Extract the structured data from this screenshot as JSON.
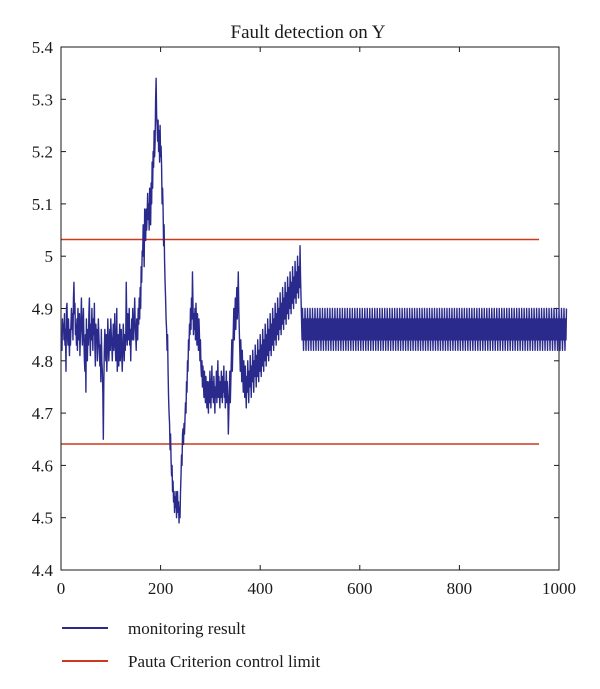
{
  "chart_data": {
    "type": "line",
    "title": "Fault detection on Y",
    "xlabel": "",
    "ylabel": "",
    "xlim": [
      0,
      1000
    ],
    "ylim": [
      4.4,
      5.4
    ],
    "x_ticks": [
      0,
      200,
      400,
      600,
      800,
      1000
    ],
    "x_tick_labels": [
      "0",
      "200",
      "400",
      "600",
      "800",
      "1000"
    ],
    "y_ticks": [
      4.4,
      4.5,
      4.6,
      4.7,
      4.8,
      4.9,
      5.0,
      5.1,
      5.2,
      5.3,
      5.4
    ],
    "y_tick_labels": [
      "4.4",
      "4.5",
      "4.6",
      "4.7",
      "4.8",
      "4.9",
      "5",
      "5.1",
      "5.2",
      "5.3",
      "5.4"
    ],
    "grid": false,
    "legend_position": "bottom",
    "series": [
      {
        "name": "monitoring result",
        "color": "#2a2a8c",
        "style": "line",
        "x_start": 1,
        "x_step": 1,
        "values": [
          4.85,
          4.82,
          4.88,
          4.86,
          4.87,
          4.84,
          4.89,
          4.83,
          4.86,
          4.78,
          4.9,
          4.91,
          4.85,
          4.83,
          4.88,
          4.84,
          4.81,
          4.86,
          4.83,
          4.87,
          4.9,
          4.86,
          4.89,
          4.84,
          4.92,
          4.95,
          4.89,
          4.91,
          4.85,
          4.87,
          4.83,
          4.88,
          4.82,
          4.9,
          4.86,
          4.84,
          4.89,
          4.81,
          4.85,
          4.88,
          4.92,
          4.86,
          4.83,
          4.87,
          4.9,
          4.84,
          4.8,
          4.78,
          4.85,
          4.74,
          4.88,
          4.82,
          4.8,
          4.86,
          4.83,
          4.89,
          4.92,
          4.85,
          4.81,
          4.87,
          4.84,
          4.9,
          4.86,
          4.82,
          4.88,
          4.85,
          4.91,
          4.83,
          4.79,
          4.87,
          4.84,
          4.86,
          4.8,
          4.83,
          4.88,
          4.85,
          4.82,
          4.79,
          4.83,
          4.76,
          4.86,
          4.8,
          4.78,
          4.74,
          4.65,
          4.76,
          4.82,
          4.86,
          4.83,
          4.8,
          4.85,
          4.78,
          4.82,
          4.88,
          4.84,
          4.8,
          4.83,
          4.86,
          4.82,
          4.88,
          4.85,
          4.83,
          4.8,
          4.84,
          4.87,
          4.82,
          4.85,
          4.89,
          4.83,
          4.8,
          4.84,
          4.9,
          4.78,
          4.82,
          4.85,
          4.79,
          4.84,
          4.87,
          4.8,
          4.83,
          4.86,
          4.81,
          4.78,
          4.82,
          4.87,
          4.84,
          4.8,
          4.85,
          4.82,
          4.84,
          4.95,
          4.88,
          4.83,
          4.89,
          4.86,
          4.84,
          4.9,
          4.83,
          4.86,
          4.8,
          4.85,
          4.88,
          4.84,
          4.9,
          4.86,
          4.84,
          4.88,
          4.92,
          4.87,
          4.85,
          4.82,
          4.88,
          4.86,
          4.84,
          4.9,
          4.87,
          4.92,
          4.88,
          4.94,
          4.9,
          4.98,
          4.95,
          5.01,
          5.0,
          5.06,
          5.04,
          4.98,
          5.09,
          5.05,
          5.03,
          5.09,
          5.05,
          5.08,
          5.12,
          5.07,
          5.1,
          5.05,
          5.13,
          5.11,
          5.06,
          5.14,
          5.1,
          5.18,
          5.13,
          5.2,
          5.17,
          5.24,
          5.19,
          5.22,
          5.3,
          5.34,
          5.27,
          5.25,
          5.22,
          5.26,
          5.2,
          5.24,
          5.18,
          5.25,
          5.19,
          5.21,
          5.17,
          5.1,
          5.13,
          5.09,
          5.02,
          5.06,
          4.99,
          4.95,
          4.92,
          4.88,
          4.86,
          4.82,
          4.85,
          4.78,
          4.73,
          4.7,
          4.68,
          4.63,
          4.66,
          4.61,
          4.58,
          4.6,
          4.55,
          4.57,
          4.53,
          4.55,
          4.51,
          4.54,
          4.52,
          4.55,
          4.5,
          4.53,
          4.55,
          4.51,
          4.53,
          4.49,
          4.52,
          4.5,
          4.55,
          4.58,
          4.62,
          4.6,
          4.66,
          4.67,
          4.64,
          4.68,
          4.66,
          4.69,
          4.72,
          4.7,
          4.76,
          4.74,
          4.8,
          4.78,
          4.84,
          4.82,
          4.87,
          4.85,
          4.9,
          4.86,
          4.92,
          4.88,
          4.97,
          4.91,
          4.85,
          4.89,
          4.86,
          4.9,
          4.84,
          4.91,
          4.87,
          4.83,
          4.89,
          4.86,
          4.82,
          4.88,
          4.85,
          4.8,
          4.84,
          4.79,
          4.77,
          4.8,
          4.75,
          4.79,
          4.76,
          4.73,
          4.78,
          4.75,
          4.72,
          4.77,
          4.74,
          4.71,
          4.76,
          4.73,
          4.7,
          4.76,
          4.72,
          4.78,
          4.74,
          4.71,
          4.75,
          4.79,
          4.73,
          4.76,
          4.72,
          4.77,
          4.74,
          4.7,
          4.75,
          4.73,
          4.78,
          4.72,
          4.76,
          4.8,
          4.73,
          4.77,
          4.74,
          4.71,
          4.76,
          4.73,
          4.78,
          4.75,
          4.72,
          4.77,
          4.74,
          4.79,
          4.73,
          4.76,
          4.71,
          4.75,
          4.78,
          4.72,
          4.76,
          4.73,
          4.66,
          4.7,
          4.74,
          4.78,
          4.72,
          4.76,
          4.8,
          4.84,
          4.78,
          4.82,
          4.86,
          4.9,
          4.84,
          4.88,
          4.92,
          4.86,
          4.9,
          4.94,
          4.88,
          4.92,
          4.97,
          4.9,
          4.86,
          4.82,
          4.78,
          4.84,
          4.8,
          4.76,
          4.82,
          4.78,
          4.74,
          4.8,
          4.77,
          4.73,
          4.79,
          4.75,
          4.71,
          4.77,
          4.74,
          4.8,
          4.76,
          4.72,
          4.78,
          4.75,
          4.81,
          4.77,
          4.73,
          4.79,
          4.76,
          4.82,
          4.78,
          4.74,
          4.8,
          4.77,
          4.83,
          4.79,
          4.75,
          4.81,
          4.77,
          4.84,
          4.8,
          4.76,
          4.82,
          4.78,
          4.85,
          4.81,
          4.77,
          4.83,
          4.79,
          4.86,
          4.82,
          4.78,
          4.84,
          4.8,
          4.87,
          4.83,
          4.79,
          4.85,
          4.81,
          4.88,
          4.84,
          4.8,
          4.86,
          4.82,
          4.89,
          4.85,
          4.81,
          4.87,
          4.83,
          4.9,
          4.86,
          4.82,
          4.88,
          4.84,
          4.91,
          4.87,
          4.83,
          4.89,
          4.85,
          4.92,
          4.88,
          4.84,
          4.9,
          4.86,
          4.93,
          4.89,
          4.85,
          4.91,
          4.87,
          4.94,
          4.9,
          4.86,
          4.92,
          4.88,
          4.95,
          4.91,
          4.87,
          4.93,
          4.89,
          4.96,
          4.92,
          4.88,
          4.94,
          4.9,
          4.97,
          4.93,
          4.89,
          4.95,
          4.91,
          4.98,
          4.94,
          4.9,
          4.96,
          4.92,
          4.99,
          4.95,
          4.91,
          4.97,
          4.93,
          5.0,
          4.96,
          4.92,
          4.98,
          4.94,
          5.02,
          4.96,
          4.92,
          4.88,
          4.84,
          4.9,
          4.86,
          4.82,
          4.88,
          4.84,
          4.9,
          4.86,
          4.82,
          4.88,
          4.84,
          4.9,
          4.86,
          4.82,
          4.88,
          4.84,
          4.9,
          4.86,
          4.82,
          4.88,
          4.84,
          4.9,
          4.86,
          4.82,
          4.88,
          4.84,
          4.9,
          4.86,
          4.82,
          4.88,
          4.84,
          4.9,
          4.86,
          4.82,
          4.88,
          4.84,
          4.9,
          4.86,
          4.82,
          4.88,
          4.84,
          4.9,
          4.86,
          4.82,
          4.88,
          4.84,
          4.9,
          4.86,
          4.82,
          4.88,
          4.84,
          4.9,
          4.86,
          4.82,
          4.88,
          4.84,
          4.9,
          4.86,
          4.82,
          4.88,
          4.84,
          4.9,
          4.86,
          4.82,
          4.88,
          4.84,
          4.9,
          4.86,
          4.82,
          4.88,
          4.84,
          4.9,
          4.86,
          4.82,
          4.88,
          4.84,
          4.9,
          4.86,
          4.82,
          4.88,
          4.84,
          4.9,
          4.86,
          4.82,
          4.88,
          4.84,
          4.9,
          4.86,
          4.82,
          4.88,
          4.84,
          4.9,
          4.86,
          4.82,
          4.88,
          4.84,
          4.9,
          4.86,
          4.82,
          4.88,
          4.84,
          4.9,
          4.86,
          4.82,
          4.88,
          4.84,
          4.9,
          4.86,
          4.82,
          4.88,
          4.84,
          4.9,
          4.86,
          4.82,
          4.88,
          4.84,
          4.9,
          4.86,
          4.82,
          4.88,
          4.84,
          4.9,
          4.86,
          4.82,
          4.88,
          4.84,
          4.9,
          4.86,
          4.82,
          4.88,
          4.84,
          4.9,
          4.86,
          4.82,
          4.88,
          4.84,
          4.9,
          4.86,
          4.82,
          4.88,
          4.84,
          4.9,
          4.86,
          4.82,
          4.88,
          4.84,
          4.9,
          4.86,
          4.82,
          4.88,
          4.84,
          4.9,
          4.86,
          4.82,
          4.88,
          4.84,
          4.9,
          4.86,
          4.82,
          4.88,
          4.84,
          4.9,
          4.86,
          4.82,
          4.88,
          4.84,
          4.9,
          4.86,
          4.82,
          4.88,
          4.84,
          4.9,
          4.86,
          4.82,
          4.88,
          4.84,
          4.9,
          4.86,
          4.82,
          4.88,
          4.84,
          4.9,
          4.86,
          4.82,
          4.88,
          4.84,
          4.9,
          4.86,
          4.82,
          4.88,
          4.84,
          4.9,
          4.86,
          4.82,
          4.88,
          4.84,
          4.9,
          4.86,
          4.82,
          4.88,
          4.84,
          4.9,
          4.86,
          4.82,
          4.88,
          4.84,
          4.9,
          4.86,
          4.82,
          4.88,
          4.84,
          4.9,
          4.86,
          4.82,
          4.88,
          4.84,
          4.9,
          4.86,
          4.82,
          4.88,
          4.84,
          4.9,
          4.86,
          4.82,
          4.88,
          4.84,
          4.9,
          4.86,
          4.82,
          4.88,
          4.84,
          4.9,
          4.86,
          4.82,
          4.88,
          4.84,
          4.9,
          4.86,
          4.82,
          4.88,
          4.84,
          4.9,
          4.86,
          4.82,
          4.88,
          4.84,
          4.9,
          4.86,
          4.82,
          4.88,
          4.84,
          4.9,
          4.86,
          4.82,
          4.88,
          4.84,
          4.9,
          4.86,
          4.82,
          4.88,
          4.84,
          4.9,
          4.86,
          4.82,
          4.88,
          4.84,
          4.9,
          4.86,
          4.82,
          4.88,
          4.84,
          4.9,
          4.86,
          4.82,
          4.88,
          4.84,
          4.9,
          4.86,
          4.82,
          4.88,
          4.84,
          4.9,
          4.86,
          4.82,
          4.88,
          4.84,
          4.9,
          4.86,
          4.82,
          4.88,
          4.84,
          4.9,
          4.86,
          4.82,
          4.88,
          4.84,
          4.9,
          4.86,
          4.82,
          4.88,
          4.84,
          4.9,
          4.86,
          4.82,
          4.88,
          4.84,
          4.9,
          4.86,
          4.82,
          4.88,
          4.84,
          4.9,
          4.86,
          4.82,
          4.88,
          4.84,
          4.9,
          4.86,
          4.82,
          4.88,
          4.84,
          4.9,
          4.86,
          4.82,
          4.88,
          4.84,
          4.9,
          4.86,
          4.82,
          4.88,
          4.84,
          4.9,
          4.86,
          4.82,
          4.88,
          4.84,
          4.9,
          4.86,
          4.82,
          4.88,
          4.84,
          4.9,
          4.86,
          4.82,
          4.88,
          4.84,
          4.9,
          4.86,
          4.82,
          4.88,
          4.84,
          4.9,
          4.86,
          4.82,
          4.88,
          4.84,
          4.9,
          4.86,
          4.82,
          4.88,
          4.84,
          4.9,
          4.86,
          4.82,
          4.88,
          4.84,
          4.9,
          4.86,
          4.82,
          4.88,
          4.84,
          4.9,
          4.86,
          4.82,
          4.88,
          4.84,
          4.9,
          4.86,
          4.82,
          4.88,
          4.84,
          4.9,
          4.86,
          4.82,
          4.88,
          4.84,
          4.9,
          4.86,
          4.82,
          4.88,
          4.84,
          4.9,
          4.86,
          4.82,
          4.88,
          4.84,
          4.9,
          4.86,
          4.82,
          4.88,
          4.84,
          4.9,
          4.86,
          4.82,
          4.88,
          4.84,
          4.9,
          4.86,
          4.82,
          4.88,
          4.84,
          4.9,
          4.86,
          4.82,
          4.88,
          4.84,
          4.9,
          4.86,
          4.82,
          4.88,
          4.84,
          4.9,
          4.86,
          4.82,
          4.88,
          4.84,
          4.9,
          4.86,
          4.82,
          4.88,
          4.84,
          4.9,
          4.86,
          4.82,
          4.88,
          4.84,
          4.9,
          4.86,
          4.82,
          4.88,
          4.84,
          4.9,
          4.86,
          4.82,
          4.88,
          4.84,
          4.9,
          4.86,
          4.82,
          4.88,
          4.84,
          4.9,
          4.86,
          4.82,
          4.88,
          4.84,
          4.9,
          4.86,
          4.82,
          4.88,
          4.84,
          4.9,
          4.86,
          4.82,
          4.88,
          4.84,
          4.9,
          4.86,
          4.82,
          4.88,
          4.84,
          4.9,
          4.86,
          4.82,
          4.88,
          4.84,
          4.9,
          4.86,
          4.82,
          4.88,
          4.84,
          4.9,
          4.86,
          4.82,
          4.88,
          4.84,
          4.9,
          4.86,
          4.82,
          4.88,
          4.84,
          4.9,
          4.86,
          4.82,
          4.88,
          4.84,
          4.9,
          4.86,
          4.82,
          4.88,
          4.84,
          4.9,
          4.86,
          4.82,
          4.88,
          4.84,
          4.9,
          4.86,
          4.82,
          4.88,
          4.84,
          4.9,
          4.86,
          4.82,
          4.88,
          4.84,
          4.9,
          4.86,
          4.82,
          4.88,
          4.84,
          4.9,
          4.86,
          4.82,
          4.88,
          4.84,
          4.9,
          4.86,
          4.82,
          4.88,
          4.84,
          4.9
        ]
      },
      {
        "name": "Pauta Criterion control limit",
        "color": "#cc3a1e",
        "style": "hline",
        "values": [
          5.032,
          4.641
        ],
        "x_range": [
          1,
          960
        ]
      }
    ]
  }
}
